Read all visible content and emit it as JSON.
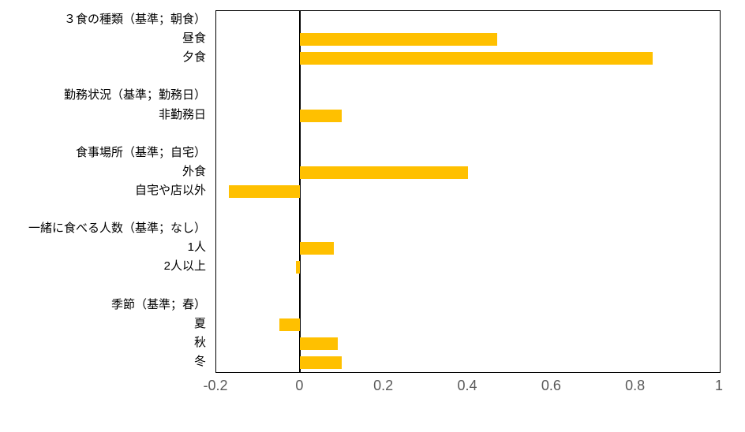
{
  "chart_data": {
    "type": "bar",
    "orientation": "horizontal",
    "title": "",
    "xlabel": "",
    "ylabel": "",
    "xlim": [
      -0.2,
      1
    ],
    "grid": false,
    "legend": "none",
    "bar_color": "#FFC000",
    "axis_color": "#000000",
    "tick_label_color": "#595959",
    "category_label_color": "#000000",
    "xtick_values": [
      -0.2,
      0,
      0.2,
      0.4,
      0.6,
      0.8,
      1
    ],
    "xtick_labels": [
      "-0.2",
      "0",
      "0.2",
      "0.4",
      "0.6",
      "0.8",
      "1"
    ],
    "rows": [
      {
        "kind": "header",
        "label": "３食の種類（基準；朝食）",
        "value": null
      },
      {
        "kind": "item",
        "label": "昼食",
        "value": 0.47
      },
      {
        "kind": "item",
        "label": "夕食",
        "value": 0.84
      },
      {
        "kind": "spacer",
        "label": "",
        "value": null
      },
      {
        "kind": "header",
        "label": "勤務状況（基準；勤務日）",
        "value": null
      },
      {
        "kind": "item",
        "label": "非勤務日",
        "value": 0.1
      },
      {
        "kind": "spacer",
        "label": "",
        "value": null
      },
      {
        "kind": "header",
        "label": "食事場所（基準；自宅）",
        "value": null
      },
      {
        "kind": "item",
        "label": "外食",
        "value": 0.4
      },
      {
        "kind": "item",
        "label": "自宅や店以外",
        "value": -0.17
      },
      {
        "kind": "spacer",
        "label": "",
        "value": null
      },
      {
        "kind": "header",
        "label": "一緒に食べる人数（基準；なし）",
        "value": null
      },
      {
        "kind": "item",
        "label": "1人",
        "value": 0.08
      },
      {
        "kind": "item",
        "label": "2人以上",
        "value": -0.01
      },
      {
        "kind": "spacer",
        "label": "",
        "value": null
      },
      {
        "kind": "header",
        "label": "季節（基準；春）",
        "value": null
      },
      {
        "kind": "item",
        "label": "夏",
        "value": -0.05
      },
      {
        "kind": "item",
        "label": "秋",
        "value": 0.09
      },
      {
        "kind": "item",
        "label": "冬",
        "value": 0.1
      }
    ]
  }
}
